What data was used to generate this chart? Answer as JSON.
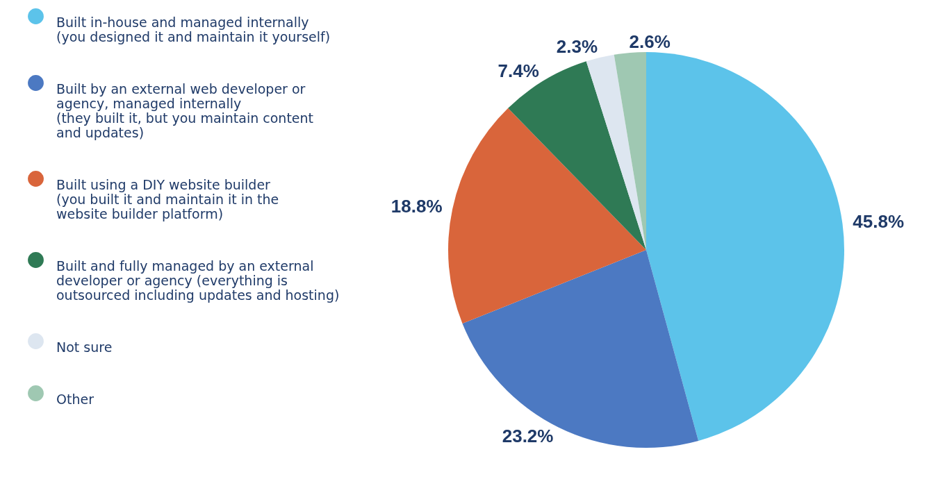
{
  "chart_data": {
    "type": "pie",
    "categories": [
      "Built in-house and managed internally (you designed it and maintain it yourself)",
      "Built by an external web developer or agency, managed internally (they built it, but you maintain content and updates)",
      "Built using a DIY website builder (you built it and maintain it in the website builder platform)",
      "Built and fully managed by an external developer or agency (everything is outsourced including updates and hosting)",
      "Not sure",
      "Other"
    ],
    "values": [
      45.8,
      23.2,
      18.8,
      7.4,
      2.3,
      2.6
    ],
    "colors": [
      "#5cc3ea",
      "#4c79c2",
      "#d9653b",
      "#2f7a55",
      "#dde6f0",
      "#9fc8b2"
    ],
    "value_labels": [
      "45.8%",
      "23.2%",
      "18.8%",
      "7.4%",
      "2.3%",
      "2.6%"
    ],
    "legend": "left"
  }
}
